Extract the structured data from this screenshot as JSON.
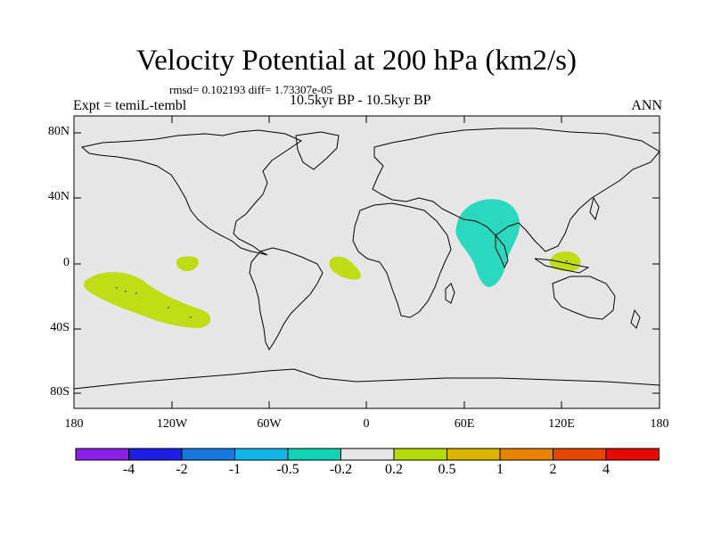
{
  "map": {
    "title": "Velocity Potential at 200 hPa (km2/s)",
    "stats_line": "rmsd= 0.102193 diff= 1.73307e-05",
    "left_label": "Expt = temiL-tembl",
    "center_label": "10.5kyr BP - 10.5kyr BP",
    "right_label": "ANN",
    "lat_labels": [
      "80N",
      "40N",
      "0",
      "40S",
      "80S"
    ],
    "lon_labels": [
      "180",
      "120W",
      "60W",
      "0",
      "60E",
      "120E",
      "180"
    ],
    "background_color": "#e6e6e6"
  },
  "colorbar": {
    "colors": [
      "#8c1ee6",
      "#1e1ee6",
      "#1478dc",
      "#10b4e6",
      "#10d2b4",
      "#e6e6e6",
      "#b4dc0a",
      "#dcb400",
      "#e68200",
      "#e64600",
      "#e60a00"
    ],
    "labels": [
      "-4",
      "-2",
      "-1",
      "-0.5",
      "-0.2",
      "0.2",
      "0.5",
      "1",
      "2",
      "4"
    ]
  },
  "regions": [
    {
      "name": "south-pacific-positive-anomaly",
      "sign": "positive",
      "color": "#c0dc14"
    },
    {
      "name": "equatorial-pacific-positive-anomaly",
      "sign": "positive",
      "color": "#c0dc14"
    },
    {
      "name": "equatorial-atlantic-positive-anomaly",
      "sign": "positive",
      "color": "#c0dc14"
    },
    {
      "name": "maritime-continent-positive-anomaly",
      "sign": "positive",
      "color": "#c0dc14"
    },
    {
      "name": "indian-ocean-negative-anomaly",
      "sign": "negative",
      "color": "#2ad8c0"
    }
  ]
}
